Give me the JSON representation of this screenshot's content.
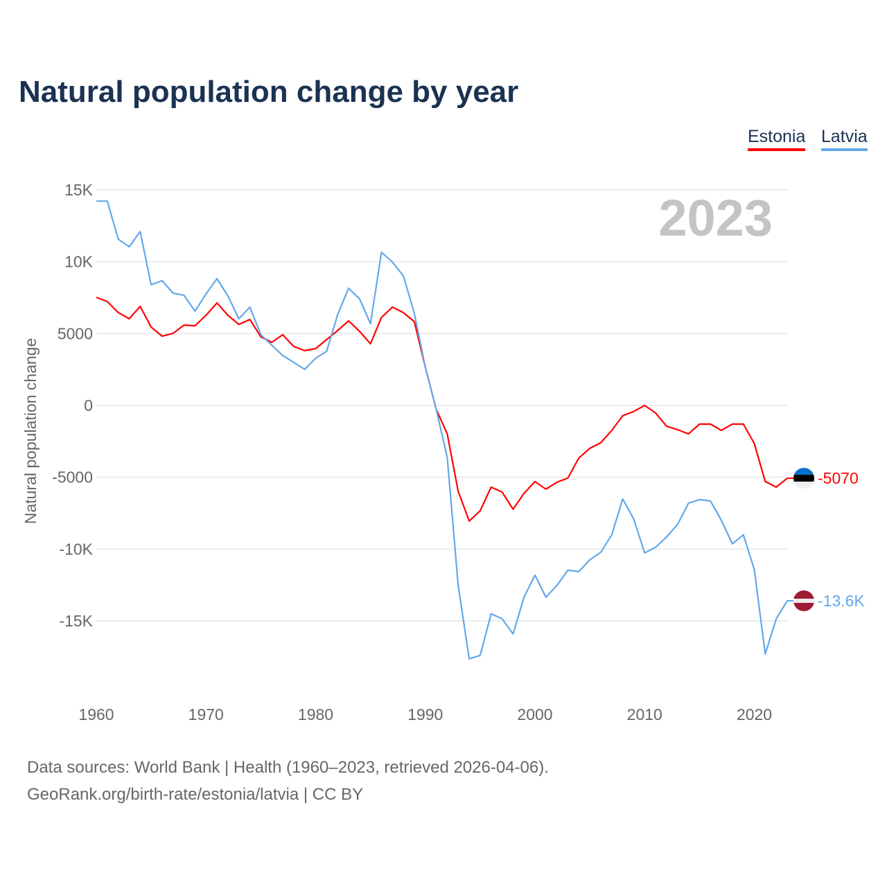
{
  "title": "Natural population change by year",
  "legend": [
    "Estonia",
    "Latvia"
  ],
  "source_line1": "Data sources: World Bank | Health (1960–2023, retrieved 2026-04-06).",
  "source_line2": "GeoRank.org/birth-rate/estonia/latvia | CC BY",
  "chart_data": {
    "type": "line",
    "title": "Natural population change by year",
    "xlabel": "",
    "ylabel": "Natural population change",
    "year_label": "2023",
    "xlim": [
      1960,
      2023
    ],
    "ylim": [
      -20000,
      15000
    ],
    "x_ticks": [
      1960,
      1970,
      1980,
      1990,
      2000,
      2010,
      2020
    ],
    "y_ticks": [
      15000,
      10000,
      5000,
      0,
      -5000,
      -10000,
      -15000
    ],
    "y_tick_labels": [
      "15K",
      "10K",
      "5000",
      "0",
      "-5000",
      "-10K",
      "-15K"
    ],
    "grid": true,
    "legend_position": "top-right",
    "x": [
      1960,
      1961,
      1962,
      1963,
      1964,
      1965,
      1966,
      1967,
      1968,
      1969,
      1970,
      1971,
      1972,
      1973,
      1974,
      1975,
      1976,
      1977,
      1978,
      1979,
      1980,
      1981,
      1982,
      1983,
      1984,
      1985,
      1986,
      1987,
      1988,
      1989,
      1990,
      1991,
      1992,
      1993,
      1994,
      1995,
      1996,
      1997,
      1998,
      1999,
      2000,
      2001,
      2002,
      2003,
      2004,
      2005,
      2006,
      2007,
      2008,
      2009,
      2010,
      2011,
      2012,
      2013,
      2014,
      2015,
      2016,
      2017,
      2018,
      2019,
      2020,
      2021,
      2022,
      2023
    ],
    "series": [
      {
        "name": "Estonia",
        "color": "#ff0000",
        "end_label": "-5070",
        "values": [
          7520,
          7230,
          6460,
          6030,
          6890,
          5450,
          4820,
          5010,
          5590,
          5540,
          6270,
          7130,
          6270,
          5640,
          5980,
          4770,
          4390,
          4920,
          4100,
          3810,
          3950,
          4580,
          5210,
          5880,
          5160,
          4290,
          6120,
          6840,
          6460,
          5830,
          2650,
          -290,
          -1980,
          -5980,
          -8050,
          -7330,
          -5690,
          -6030,
          -7230,
          -6120,
          -5300,
          -5830,
          -5350,
          -5060,
          -3660,
          -2990,
          -2600,
          -1740,
          -720,
          -430,
          0,
          -530,
          -1450,
          -1690,
          -1980,
          -1300,
          -1300,
          -1740,
          -1300,
          -1300,
          -2650,
          -5300,
          -5690,
          -5070
        ]
      },
      {
        "name": "Latvia",
        "color": "#62a8ea",
        "end_label": "-13.6K",
        "values": [
          14220,
          14220,
          11570,
          11040,
          12100,
          8390,
          8680,
          7810,
          7660,
          6560,
          7760,
          8820,
          7620,
          6030,
          6840,
          4920,
          4190,
          3470,
          2990,
          2510,
          3280,
          3760,
          6310,
          8150,
          7420,
          5690,
          10650,
          9980,
          9010,
          6410,
          2650,
          -290,
          -3620,
          -12530,
          -17640,
          -17400,
          -14510,
          -14850,
          -15910,
          -13350,
          -11810,
          -13350,
          -12530,
          -11470,
          -11570,
          -10750,
          -10220,
          -9010,
          -6510,
          -7900,
          -10270,
          -9880,
          -9160,
          -8290,
          -6800,
          -6560,
          -6650,
          -8000,
          -9640,
          -9010,
          -11420,
          -17300,
          -14850,
          -13600
        ]
      }
    ]
  }
}
